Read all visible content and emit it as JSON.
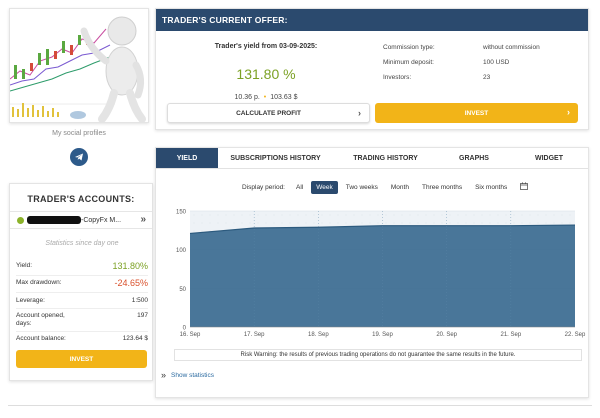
{
  "profile": {
    "social_label": "My social profiles",
    "social_icons": [
      "telegram-icon"
    ]
  },
  "accounts": {
    "title": "TRADER'S ACCOUNTS:",
    "account_name": "-CopyFx M...",
    "account_status_color": "#8cb32a",
    "statistics_label": "Statistics since day one",
    "rows": [
      {
        "label": "Yield:",
        "value": "131.80%",
        "color": "#7ca124"
      },
      {
        "label": "Max drawdown:",
        "value": "-24.65%",
        "color": "#d9512c"
      },
      {
        "label": "Leverage:",
        "value": "1:500",
        "color": "#333333"
      },
      {
        "label": "Account opened, days:",
        "value": "197",
        "color": "#333333"
      },
      {
        "label": "Account balance:",
        "value": "123.64 $",
        "color": "#333333"
      }
    ],
    "invest_label": "INVEST"
  },
  "offer": {
    "header": "TRADER'S CURRENT OFFER:",
    "yield_title": "Trader's yield from 03-09-2025:",
    "yield_value": "131.80 %",
    "points": "10.36 p.",
    "amount": "103.63 $",
    "details": [
      {
        "label": "Commission type:",
        "value": "without commission"
      },
      {
        "label": "Minimum deposit:",
        "value": "100 USD"
      },
      {
        "label": "Investors:",
        "value": "23"
      }
    ],
    "calc_label": "CALCULATE PROFIT",
    "invest_label": "INVEST"
  },
  "tabs": [
    {
      "label": "YIELD",
      "active": true
    },
    {
      "label": "SUBSCRIPTIONS HISTORY",
      "active": false
    },
    {
      "label": "TRADING HISTORY",
      "active": false
    },
    {
      "label": "GRAPHS",
      "active": false
    },
    {
      "label": "WIDGET",
      "active": false
    }
  ],
  "period": {
    "label": "Display period:",
    "options": [
      "All",
      "Week",
      "Two weeks",
      "Month",
      "Three months",
      "Six months"
    ],
    "selected": "Week",
    "calendar_icon": "calendar-icon"
  },
  "chart_data": {
    "type": "area",
    "x": [
      "16. Sep",
      "17. Sep",
      "18. Sep",
      "19. Sep",
      "20. Sep",
      "21. Sep",
      "22. Sep"
    ],
    "values": [
      121,
      128,
      129,
      131,
      131,
      131,
      131.8
    ],
    "yticks": [
      0,
      50,
      100,
      150
    ],
    "ylim": [
      0,
      150
    ],
    "grid": true,
    "fill_color": "#3f6f93",
    "line_color": "#2c5a7e",
    "background_color": "#eef2f6"
  },
  "risk_warning": "Risk Warning: the results of previous trading operations do not guarantee the same results in the future.",
  "show_statistics": "Show statistics"
}
